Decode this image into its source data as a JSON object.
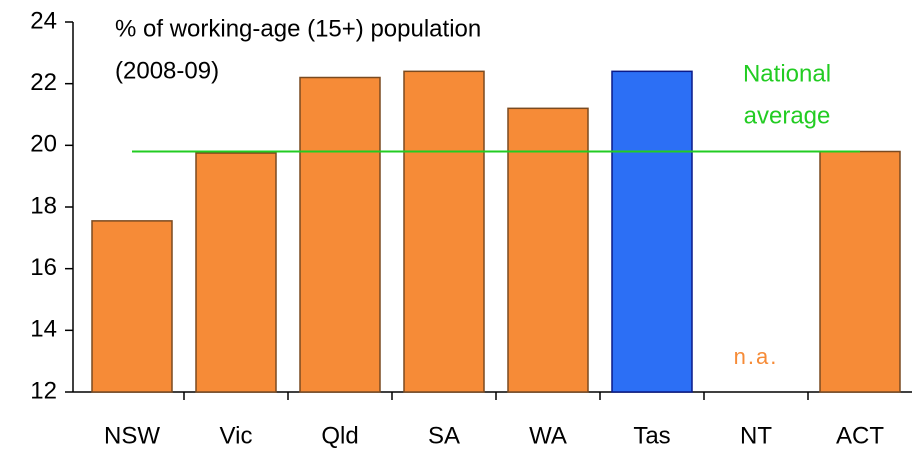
{
  "chart_data": {
    "type": "bar",
    "annotations": [
      "% of working-age (15+) population",
      "(2008-09)"
    ],
    "categories": [
      "NSW",
      "Vic",
      "Qld",
      "SA",
      "WA",
      "Tas",
      "NT",
      "ACT"
    ],
    "values": [
      17.55,
      19.75,
      22.2,
      22.4,
      21.2,
      22.4,
      null,
      19.8
    ],
    "value_labels": [
      null,
      null,
      null,
      null,
      null,
      null,
      "n.a.",
      null
    ],
    "value_label_color": "#f68b37",
    "colors": [
      "#f68b37",
      "#f68b37",
      "#f68b37",
      "#f68b37",
      "#f68b37",
      "#2c6ff5",
      "#f68b37",
      "#f68b37"
    ],
    "edge_colors": [
      "#7a4a20",
      "#7a4a20",
      "#7a4a20",
      "#7a4a20",
      "#7a4a20",
      "#0a1a8a",
      "#7a4a20",
      "#7a4a20"
    ],
    "reference_line": {
      "value": 19.8,
      "label": [
        "National",
        "average"
      ],
      "color": "#22cc22"
    },
    "ylim": [
      12,
      24
    ],
    "yticks": [
      12,
      14,
      16,
      18,
      20,
      22,
      24
    ],
    "grid": false
  }
}
